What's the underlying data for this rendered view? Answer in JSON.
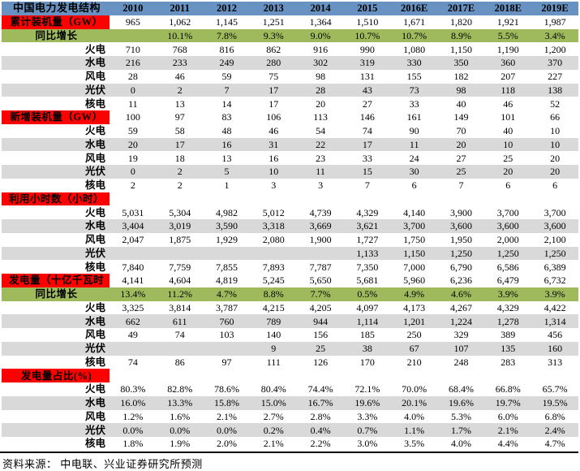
{
  "colors": {
    "header_blue": "#6792C1",
    "section_red": "#FF0000",
    "growth_green": "#9FBA5C",
    "stripe_gray": "#D9D9D9"
  },
  "table": {
    "title": "中国电力发电结构",
    "years": [
      "2010",
      "2011",
      "2012",
      "2013",
      "2014",
      "2015",
      "2016E",
      "2017E",
      "2018E",
      "2019E"
    ],
    "rows": [
      {
        "type": "section",
        "label": "累计装机量（GW）",
        "values": [
          "965",
          "1,062",
          "1,145",
          "1,251",
          "1,364",
          "1,510",
          "1,671",
          "1,820",
          "1,921",
          "1,987"
        ]
      },
      {
        "type": "growth",
        "label": "同比增长",
        "values": [
          "",
          "10.1%",
          "7.8%",
          "9.3%",
          "9.0%",
          "10.7%",
          "10.7%",
          "8.9%",
          "5.5%",
          "3.4%"
        ]
      },
      {
        "type": "item",
        "label": "火电",
        "values": [
          "710",
          "768",
          "816",
          "862",
          "916",
          "990",
          "1,080",
          "1,150",
          "1,190",
          "1,200"
        ]
      },
      {
        "type": "item",
        "label": "水电",
        "values": [
          "216",
          "233",
          "249",
          "280",
          "302",
          "319",
          "330",
          "350",
          "360",
          "370"
        ]
      },
      {
        "type": "item",
        "label": "风电",
        "values": [
          "28",
          "46",
          "59",
          "75",
          "98",
          "131",
          "155",
          "182",
          "207",
          "227"
        ]
      },
      {
        "type": "item",
        "label": "光伏",
        "values": [
          "0",
          "2",
          "7",
          "17",
          "28",
          "43",
          "73",
          "98",
          "118",
          "138"
        ]
      },
      {
        "type": "item",
        "label": "核电",
        "values": [
          "11",
          "13",
          "14",
          "17",
          "20",
          "27",
          "33",
          "40",
          "46",
          "52"
        ]
      },
      {
        "type": "section",
        "label": "新增装机量（GW）",
        "values": [
          "100",
          "97",
          "83",
          "106",
          "113",
          "146",
          "161",
          "149",
          "101",
          "66"
        ]
      },
      {
        "type": "item",
        "label": "火电",
        "values": [
          "59",
          "58",
          "48",
          "46",
          "54",
          "74",
          "90",
          "70",
          "40",
          "10"
        ]
      },
      {
        "type": "item",
        "label": "水电",
        "values": [
          "20",
          "17",
          "16",
          "31",
          "22",
          "17",
          "11",
          "20",
          "10",
          "10"
        ]
      },
      {
        "type": "item",
        "label": "风电",
        "values": [
          "19",
          "18",
          "13",
          "16",
          "23",
          "33",
          "24",
          "27",
          "25",
          "20"
        ]
      },
      {
        "type": "item",
        "label": "光伏",
        "values": [
          "0",
          "2",
          "5",
          "10",
          "11",
          "15",
          "30",
          "25",
          "20",
          "20"
        ]
      },
      {
        "type": "item",
        "label": "核电",
        "values": [
          "2",
          "2",
          "1",
          "3",
          "3",
          "7",
          "6",
          "7",
          "6",
          "6"
        ]
      },
      {
        "type": "section",
        "label": "利用小时数（小时）",
        "values": [
          "",
          "",
          "",
          "",
          "",
          "",
          "",
          "",
          "",
          ""
        ]
      },
      {
        "type": "item",
        "label": "火电",
        "values": [
          "5,031",
          "5,304",
          "4,982",
          "5,012",
          "4,739",
          "4,329",
          "4,140",
          "3,900",
          "3,700",
          "3,700"
        ]
      },
      {
        "type": "item",
        "label": "水电",
        "values": [
          "3,404",
          "3,019",
          "3,590",
          "3,318",
          "3,669",
          "3,621",
          "3,700",
          "3,600",
          "3,600",
          "3,600"
        ]
      },
      {
        "type": "item",
        "label": "风电",
        "values": [
          "2,047",
          "1,875",
          "1,929",
          "2,080",
          "1,900",
          "1,727",
          "1,750",
          "1,950",
          "2,000",
          "2,100"
        ]
      },
      {
        "type": "item",
        "label": "光伏",
        "values": [
          "",
          "",
          "",
          "",
          "",
          "1,133",
          "1,150",
          "1,250",
          "1,250",
          "1,250"
        ]
      },
      {
        "type": "item",
        "label": "核电",
        "values": [
          "7,840",
          "7,759",
          "7,855",
          "7,893",
          "7,787",
          "7,350",
          "7,000",
          "6,790",
          "6,586",
          "6,389"
        ]
      },
      {
        "type": "section",
        "label": "发电量（十亿千瓦时",
        "values": [
          "4,141",
          "4,604",
          "4,819",
          "5,245",
          "5,650",
          "5,681",
          "5,960",
          "6,236",
          "6,479",
          "6,732"
        ]
      },
      {
        "type": "growth",
        "label": "同比增长",
        "values": [
          "13.4%",
          "11.2%",
          "4.7%",
          "8.8%",
          "7.7%",
          "0.5%",
          "4.9%",
          "4.6%",
          "3.9%",
          "3.9%"
        ]
      },
      {
        "type": "item",
        "label": "火电",
        "values": [
          "3,325",
          "3,814",
          "3,787",
          "4,215",
          "4,205",
          "4,097",
          "4,173",
          "4,267",
          "4,329",
          "4,422"
        ]
      },
      {
        "type": "item",
        "label": "水电",
        "values": [
          "662",
          "611",
          "760",
          "789",
          "944",
          "1,114",
          "1,201",
          "1,224",
          "1,278",
          "1,314"
        ]
      },
      {
        "type": "item",
        "label": "风电",
        "values": [
          "49",
          "74",
          "103",
          "140",
          "156",
          "185",
          "250",
          "329",
          "389",
          "456"
        ]
      },
      {
        "type": "item",
        "label": "光伏",
        "values": [
          "",
          "",
          "",
          "9",
          "25",
          "38",
          "67",
          "107",
          "135",
          "160"
        ]
      },
      {
        "type": "item",
        "label": "核电",
        "values": [
          "74",
          "86",
          "97",
          "111",
          "126",
          "170",
          "210",
          "248",
          "283",
          "313"
        ]
      },
      {
        "type": "section",
        "label": "发电量占比(%)",
        "values": [
          "",
          "",
          "",
          "",
          "",
          "",
          "",
          "",
          "",
          ""
        ]
      },
      {
        "type": "item",
        "label": "火电",
        "values": [
          "80.3%",
          "82.8%",
          "78.6%",
          "80.4%",
          "74.4%",
          "72.1%",
          "70.0%",
          "68.4%",
          "66.8%",
          "65.7%"
        ]
      },
      {
        "type": "item",
        "label": "水电",
        "values": [
          "16.0%",
          "13.3%",
          "15.8%",
          "15.0%",
          "16.7%",
          "19.6%",
          "20.1%",
          "19.6%",
          "19.7%",
          "19.5%"
        ]
      },
      {
        "type": "item",
        "label": "风电",
        "values": [
          "1.2%",
          "1.6%",
          "2.1%",
          "2.7%",
          "2.8%",
          "3.3%",
          "4.0%",
          "5.3%",
          "6.0%",
          "6.8%"
        ]
      },
      {
        "type": "item",
        "label": "光伏",
        "values": [
          "0.0%",
          "0.0%",
          "0.0%",
          "0.2%",
          "0.4%",
          "0.7%",
          "1.1%",
          "1.7%",
          "2.1%",
          "2.4%"
        ]
      },
      {
        "type": "item",
        "label": "核电",
        "values": [
          "1.8%",
          "1.9%",
          "2.0%",
          "2.1%",
          "2.2%",
          "3.0%",
          "3.5%",
          "4.0%",
          "4.4%",
          "4.7%"
        ]
      }
    ],
    "shaded_item_labels": [
      "水电",
      "光伏"
    ]
  },
  "footer": {
    "source": "资料来源： 中电联、兴业证券研究所预测"
  }
}
